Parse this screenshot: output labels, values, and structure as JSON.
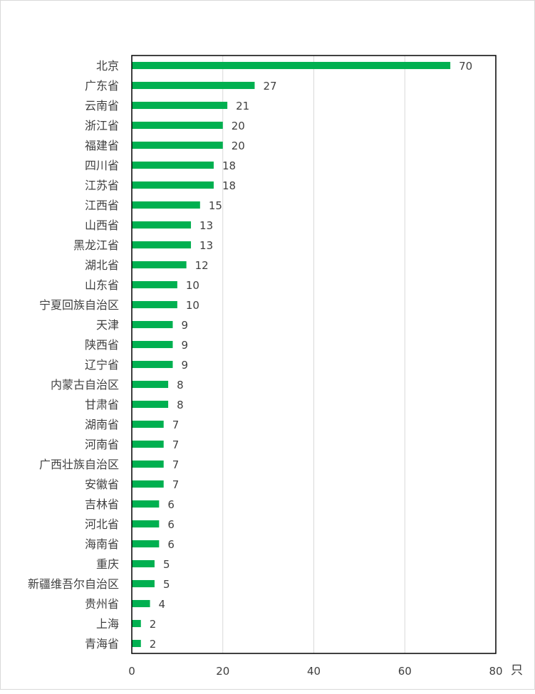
{
  "chart_data": {
    "type": "bar",
    "orientation": "horizontal",
    "categories": [
      "北京",
      "广东省",
      "云南省",
      "浙江省",
      "福建省",
      "四川省",
      "江苏省",
      "江西省",
      "山西省",
      "黑龙江省",
      "湖北省",
      "山东省",
      "宁夏回族自治区",
      "天津",
      "陕西省",
      "辽宁省",
      "内蒙古自治区",
      "甘肃省",
      "湖南省",
      "河南省",
      "广西壮族自治区",
      "安徽省",
      "吉林省",
      "河北省",
      "海南省",
      "重庆",
      "新疆维吾尔自治区",
      "贵州省",
      "上海",
      "青海省"
    ],
    "values": [
      70,
      27,
      21,
      20,
      20,
      18,
      18,
      15,
      13,
      13,
      12,
      10,
      10,
      9,
      9,
      9,
      8,
      8,
      7,
      7,
      7,
      7,
      6,
      6,
      6,
      5,
      5,
      4,
      2,
      2
    ],
    "xlim": [
      0,
      80
    ],
    "xticks": [
      "0",
      "20",
      "40",
      "60",
      "80"
    ],
    "unit": "只",
    "grid": true,
    "bar_color": "#00b050"
  }
}
